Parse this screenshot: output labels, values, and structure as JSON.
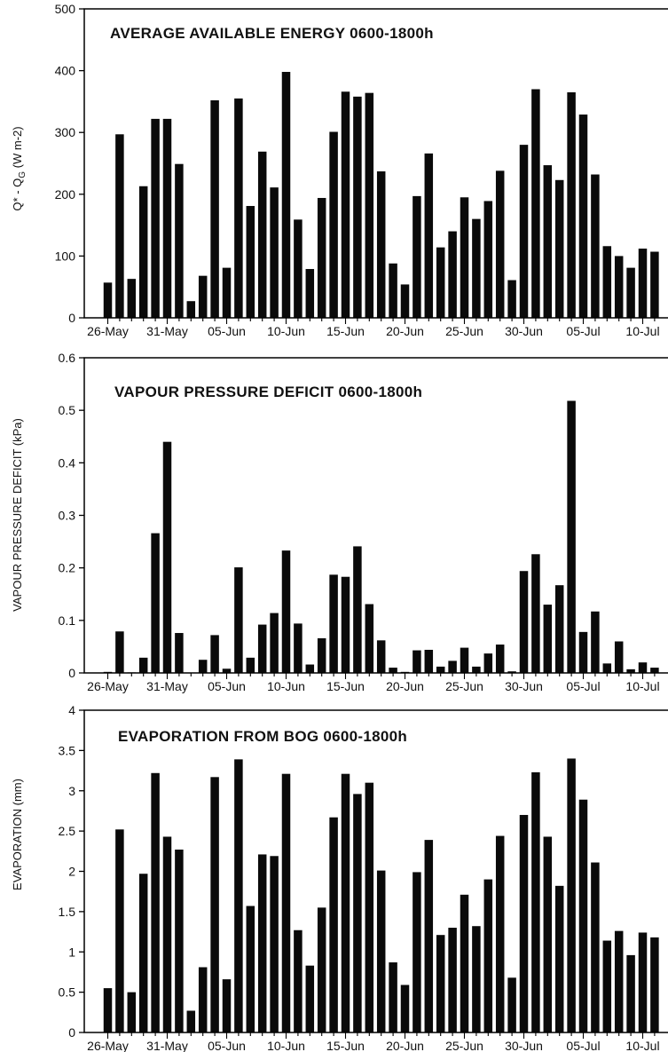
{
  "chart_data": [
    {
      "type": "bar",
      "title": "AVERAGE AVAILABLE ENERGY 0600-1800h",
      "ylabel_main": "Q* - Q",
      "ylabel_sub": "G",
      "ylabel_unit": " (W m-2)",
      "ylim": [
        0,
        500
      ],
      "yticks": [
        "0",
        "100",
        "200",
        "300",
        "400",
        "500"
      ],
      "xtick_labels": [
        "26-May",
        "31-May",
        "05-Jun",
        "10-Jun",
        "15-Jun",
        "20-Jun",
        "25-Jun",
        "30-Jun",
        "05-Jul",
        "10-Jul"
      ],
      "values": [
        57,
        297,
        63,
        213,
        322,
        322,
        249,
        27,
        68,
        352,
        81,
        355,
        181,
        269,
        211,
        398,
        159,
        79,
        194,
        301,
        366,
        358,
        364,
        237,
        88,
        54,
        197,
        266,
        114,
        140,
        195,
        160,
        189,
        238,
        61,
        280,
        370,
        247,
        223,
        365,
        329,
        232,
        116,
        100,
        81,
        112,
        107
      ]
    },
    {
      "type": "bar",
      "title": "VAPOUR PRESSURE DEFICIT 0600-1800h",
      "ylabel": "VAPOUR PRESSURE DEFICIT (kPa)",
      "ylim": [
        0,
        0.6
      ],
      "yticks": [
        "0",
        "0.1",
        "0.2",
        "0.3",
        "0.4",
        "0.5",
        "0.6"
      ],
      "xtick_labels": [
        "26-May",
        "31-May",
        "05-Jun",
        "10-Jun",
        "15-Jun",
        "20-Jun",
        "25-Jun",
        "30-Jun",
        "05-Jul",
        "10-Jul"
      ],
      "values": [
        0.002,
        0.079,
        0.001,
        0.029,
        0.266,
        0.44,
        0.076,
        0.0,
        0.025,
        0.072,
        0.008,
        0.201,
        0.029,
        0.092,
        0.114,
        0.233,
        0.094,
        0.016,
        0.066,
        0.187,
        0.183,
        0.241,
        0.131,
        0.062,
        0.01,
        0.002,
        0.043,
        0.044,
        0.012,
        0.023,
        0.048,
        0.012,
        0.037,
        0.054,
        0.003,
        0.194,
        0.226,
        0.13,
        0.167,
        0.518,
        0.078,
        0.117,
        0.018,
        0.06,
        0.007,
        0.02,
        0.01
      ]
    },
    {
      "type": "bar",
      "title": "EVAPORATION FROM BOG 0600-1800h",
      "ylabel": "EVAPORATION (mm)",
      "ylim": [
        0,
        4
      ],
      "yticks": [
        "0",
        "0.5",
        "1",
        "1.5",
        "2",
        "2.5",
        "3",
        "3.5",
        "4"
      ],
      "xtick_labels": [
        "26-May",
        "31-May",
        "05-Jun",
        "10-Jun",
        "15-Jun",
        "20-Jun",
        "25-Jun",
        "30-Jun",
        "05-Jul",
        "10-Jul"
      ],
      "values": [
        0.55,
        2.52,
        0.5,
        1.97,
        3.22,
        2.43,
        2.27,
        0.27,
        0.81,
        3.17,
        0.66,
        3.39,
        1.57,
        2.21,
        2.19,
        3.21,
        1.27,
        0.83,
        1.55,
        2.67,
        3.21,
        2.96,
        3.1,
        2.01,
        0.87,
        0.59,
        1.99,
        2.39,
        1.21,
        1.3,
        1.71,
        1.32,
        1.9,
        2.44,
        0.68,
        2.7,
        3.23,
        2.43,
        1.82,
        3.4,
        2.89,
        2.11,
        1.14,
        1.26,
        0.96,
        1.24,
        1.18
      ]
    }
  ]
}
